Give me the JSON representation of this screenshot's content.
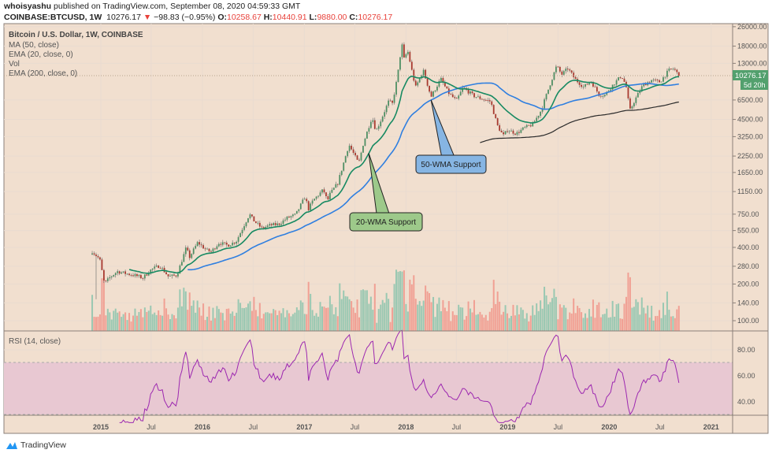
{
  "header": {
    "author": "whoisyashu",
    "published": "published on TradingView.com, September 08, 2020 04:59:33 GMT",
    "symbol": "COINBASE:BTCUSD, 1W",
    "last": "10276.17",
    "change": "−98.83 (−0.95%)",
    "o_label": "O:",
    "o": "10258.67",
    "h_label": "H:",
    "h": "10440.91",
    "l_label": "L:",
    "l": "9880.00",
    "c_label": "C:",
    "c": "10276.17"
  },
  "legend": {
    "title": "Bitcoin / U.S. Dollar, 1W, COINBASE",
    "items": [
      "MA (50, close)",
      "EMA (20, close, 0)",
      "Vol",
      "EMA (200, close, 0)"
    ],
    "rsi": "RSI (14, close)"
  },
  "price_label": {
    "value": "10276.17",
    "countdown": "5d 20h"
  },
  "annotations": [
    {
      "text": "20-WMA Support",
      "color": "#9dc98a",
      "target_date": "2017-08-20"
    },
    {
      "text": "50-WMA Support",
      "color": "#86b5e3",
      "target_date": "2018-04-01"
    }
  ],
  "footer": {
    "brand": "TradingView"
  },
  "colors": {
    "background": "#f1dfcf",
    "up": "#4f8f64",
    "down": "#a83a30",
    "ema20": "#178a62",
    "ma50": "#2f7fe0",
    "ema200": "#2a2a2a",
    "rsi": "#9c27b0",
    "rsi_band": "#e8c8d2",
    "price_tag": "#53a06e"
  },
  "chart_data": {
    "type": "candlestick",
    "scale": "log",
    "interval": "1W",
    "y_ticks": [
      "26000.00",
      "18000.00",
      "13000.00",
      "6500.00",
      "4500.00",
      "3250.00",
      "2250.00",
      "1650.00",
      "1150.00",
      "750.00",
      "550.00",
      "400.00",
      "280.00",
      "200.00",
      "140.00",
      "100.00"
    ],
    "x_ticks": [
      "2015",
      "Jul",
      "2016",
      "Jul",
      "2017",
      "Jul",
      "2018",
      "Jul",
      "2019",
      "Jul",
      "2020",
      "Jul",
      "2021"
    ],
    "rsi_ticks": [
      "80.00",
      "60.00",
      "40.00"
    ],
    "rsi_bands": [
      70,
      30
    ],
    "close_anchors": [
      [
        "2014-12-01",
        370
      ],
      [
        "2014-12-28",
        320
      ],
      [
        "2015-01-14",
        200
      ],
      [
        "2015-02-01",
        225
      ],
      [
        "2015-03-01",
        254
      ],
      [
        "2015-04-01",
        244
      ],
      [
        "2015-05-01",
        236
      ],
      [
        "2015-06-01",
        225
      ],
      [
        "2015-07-01",
        263
      ],
      [
        "2015-08-01",
        284
      ],
      [
        "2015-09-01",
        230
      ],
      [
        "2015-10-01",
        236
      ],
      [
        "2015-11-04",
        400
      ],
      [
        "2015-11-15",
        330
      ],
      [
        "2015-12-15",
        440
      ],
      [
        "2016-01-15",
        380
      ],
      [
        "2016-02-01",
        369
      ],
      [
        "2016-03-01",
        437
      ],
      [
        "2016-04-01",
        416
      ],
      [
        "2016-05-01",
        448
      ],
      [
        "2016-06-18",
        750
      ],
      [
        "2016-07-01",
        673
      ],
      [
        "2016-08-01",
        575
      ],
      [
        "2016-09-01",
        609
      ],
      [
        "2016-10-01",
        620
      ],
      [
        "2016-11-01",
        700
      ],
      [
        "2016-12-01",
        742
      ],
      [
        "2017-01-04",
        1050
      ],
      [
        "2017-01-15",
        820
      ],
      [
        "2017-02-01",
        970
      ],
      [
        "2017-03-10",
        1190
      ],
      [
        "2017-03-25",
        960
      ],
      [
        "2017-04-01",
        1080
      ],
      [
        "2017-05-01",
        1350
      ],
      [
        "2017-06-10",
        2800
      ],
      [
        "2017-07-15",
        1950
      ],
      [
        "2017-08-01",
        2870
      ],
      [
        "2017-09-01",
        4730
      ],
      [
        "2017-09-15",
        3600
      ],
      [
        "2017-10-01",
        4340
      ],
      [
        "2017-11-01",
        6450
      ],
      [
        "2017-11-12",
        5900
      ],
      [
        "2017-12-01",
        10000
      ],
      [
        "2017-12-17",
        19000
      ],
      [
        "2017-12-24",
        14000
      ],
      [
        "2018-01-07",
        16500
      ],
      [
        "2018-02-04",
        8200
      ],
      [
        "2018-03-04",
        11400
      ],
      [
        "2018-04-01",
        6900
      ],
      [
        "2018-05-06",
        9700
      ],
      [
        "2018-06-01",
        7500
      ],
      [
        "2018-07-01",
        6400
      ],
      [
        "2018-07-25",
        8200
      ],
      [
        "2018-09-01",
        7030
      ],
      [
        "2018-10-01",
        6630
      ],
      [
        "2018-11-01",
        6320
      ],
      [
        "2018-11-25",
        4020
      ],
      [
        "2018-12-16",
        3300
      ],
      [
        "2019-01-01",
        3700
      ],
      [
        "2019-02-01",
        3440
      ],
      [
        "2019-03-01",
        3820
      ],
      [
        "2019-04-01",
        4100
      ],
      [
        "2019-05-01",
        5320
      ],
      [
        "2019-06-01",
        8560
      ],
      [
        "2019-06-26",
        12400
      ],
      [
        "2019-07-14",
        10500
      ],
      [
        "2019-08-05",
        11800
      ],
      [
        "2019-09-01",
        9600
      ],
      [
        "2019-10-01",
        8300
      ],
      [
        "2019-10-27",
        9300
      ],
      [
        "2019-11-25",
        7200
      ],
      [
        "2019-12-15",
        7100
      ],
      [
        "2020-01-15",
        8700
      ],
      [
        "2020-02-14",
        10300
      ],
      [
        "2020-03-01",
        8540
      ],
      [
        "2020-03-15",
        5300
      ],
      [
        "2020-04-01",
        6430
      ],
      [
        "2020-05-01",
        8630
      ],
      [
        "2020-06-01",
        9450
      ],
      [
        "2020-07-01",
        9140
      ],
      [
        "2020-08-02",
        11400
      ],
      [
        "2020-08-20",
        11800
      ],
      [
        "2020-09-07",
        10276.17
      ]
    ]
  }
}
